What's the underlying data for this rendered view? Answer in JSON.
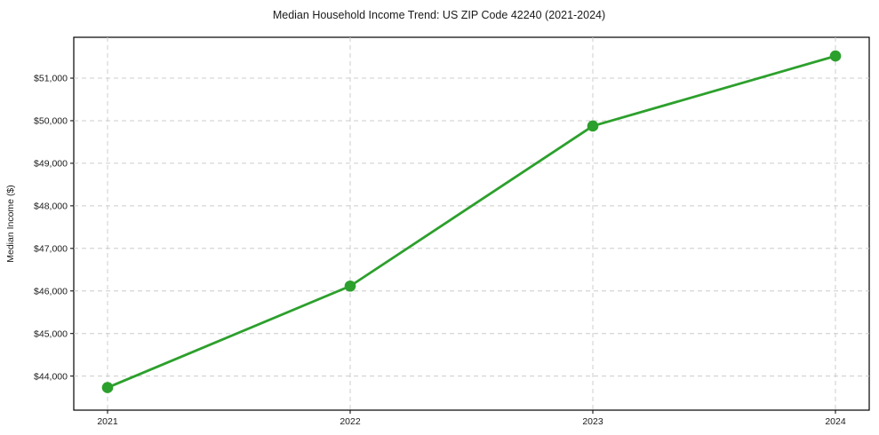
{
  "chart_data": {
    "type": "line",
    "title": "Median Household Income Trend: US ZIP Code 42240 (2021-2024)",
    "xlabel": "",
    "ylabel": "Median Income ($)",
    "x": [
      2021,
      2022,
      2023,
      2024
    ],
    "x_tick_labels": [
      "2021",
      "2022",
      "2023",
      "2024"
    ],
    "series": [
      {
        "name": "Median Household Income",
        "values": [
          43730,
          46115,
          49875,
          51520
        ]
      }
    ],
    "y_ticks": [
      44000,
      45000,
      46000,
      47000,
      48000,
      49000,
      50000,
      51000
    ],
    "y_tick_labels": [
      "$44,000",
      "$45,000",
      "$46,000",
      "$47,000",
      "$48,000",
      "$49,000",
      "$50,000",
      "$51,000"
    ],
    "ylim": [
      43200,
      51960
    ],
    "grid": true,
    "grid_style": "dashed",
    "legend": false,
    "colors": {
      "line": "#2ca02c",
      "marker": "#2ca02c",
      "grid": "#cccccc",
      "spine": "#000000",
      "background": "#ffffff",
      "text": "#1a1a1a"
    }
  }
}
